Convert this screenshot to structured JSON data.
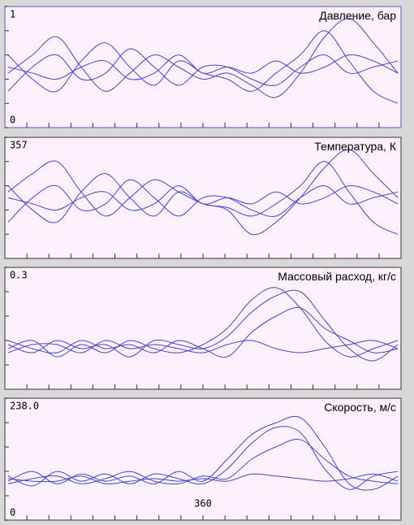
{
  "chart_data": [
    {
      "type": "line",
      "title": "Давление, бар",
      "ylim": [
        0,
        1
      ],
      "yticks": [
        1,
        0
      ],
      "xlim": [
        0,
        720
      ],
      "x": [
        0,
        45,
        90,
        135,
        180,
        225,
        270,
        315,
        360,
        405,
        450,
        495,
        540,
        585,
        630,
        675,
        720
      ],
      "series": [
        {
          "color": "#4646c0",
          "values": [
            0.45,
            0.6,
            0.75,
            0.5,
            0.3,
            0.45,
            0.6,
            0.5,
            0.4,
            0.45,
            0.35,
            0.25,
            0.45,
            0.75,
            0.9,
            0.7,
            0.45
          ]
        },
        {
          "color": "#4646c0",
          "values": [
            0.6,
            0.4,
            0.3,
            0.55,
            0.7,
            0.5,
            0.35,
            0.55,
            0.45,
            0.4,
            0.3,
            0.45,
            0.6,
            0.8,
            0.55,
            0.3,
            0.2
          ]
        },
        {
          "color": "#4646c0",
          "values": [
            0.3,
            0.5,
            0.6,
            0.4,
            0.45,
            0.65,
            0.5,
            0.35,
            0.5,
            0.5,
            0.4,
            0.35,
            0.5,
            0.6,
            0.45,
            0.5,
            0.55
          ]
        },
        {
          "color": "#4646c0",
          "values": [
            0.5,
            0.45,
            0.4,
            0.5,
            0.55,
            0.4,
            0.45,
            0.6,
            0.45,
            0.5,
            0.45,
            0.55,
            0.45,
            0.5,
            0.6,
            0.55,
            0.45
          ]
        }
      ]
    },
    {
      "type": "line",
      "title": "Температура, К",
      "ylim": [
        0,
        357
      ],
      "yticks": [
        357
      ],
      "xlim": [
        0,
        720
      ],
      "x": [
        0,
        45,
        90,
        135,
        180,
        225,
        270,
        315,
        360,
        405,
        450,
        495,
        540,
        585,
        630,
        675,
        720
      ],
      "series": [
        {
          "color": "#4646c0",
          "values": [
            196,
            250,
            286,
            196,
            125,
            179,
            232,
            196,
            161,
            143,
            71,
            107,
            179,
            268,
            321,
            250,
            179
          ]
        },
        {
          "color": "#4646c0",
          "values": [
            214,
            143,
            107,
            196,
            250,
            179,
            125,
            196,
            161,
            150,
            125,
            161,
            214,
            286,
            196,
            107,
            71
          ]
        },
        {
          "color": "#4646c0",
          "values": [
            107,
            179,
            214,
            143,
            161,
            232,
            179,
            125,
            179,
            179,
            143,
            125,
            179,
            214,
            161,
            179,
            196
          ]
        },
        {
          "color": "#4646c0",
          "values": [
            179,
            161,
            143,
            179,
            196,
            143,
            161,
            214,
            161,
            179,
            161,
            196,
            161,
            179,
            214,
            196,
            161
          ]
        }
      ]
    },
    {
      "type": "line",
      "title": "Массовый расход, кг/с",
      "ylim": [
        0,
        0.3
      ],
      "yticks": [
        0.3
      ],
      "xlim": [
        0,
        720
      ],
      "x": [
        0,
        45,
        90,
        135,
        180,
        225,
        270,
        315,
        360,
        405,
        450,
        495,
        540,
        585,
        630,
        675,
        720
      ],
      "series": [
        {
          "color": "#4646c0",
          "values": [
            0.1,
            0.12,
            0.08,
            0.11,
            0.09,
            0.12,
            0.1,
            0.09,
            0.11,
            0.15,
            0.22,
            0.25,
            0.2,
            0.12,
            0.08,
            0.1,
            0.12
          ]
        },
        {
          "color": "#4646c0",
          "values": [
            0.11,
            0.09,
            0.12,
            0.1,
            0.11,
            0.08,
            0.12,
            0.11,
            0.1,
            0.13,
            0.19,
            0.23,
            0.24,
            0.17,
            0.1,
            0.07,
            0.11
          ]
        },
        {
          "color": "#4646c0",
          "values": [
            0.12,
            0.1,
            0.09,
            0.12,
            0.1,
            0.11,
            0.09,
            0.12,
            0.1,
            0.08,
            0.14,
            0.18,
            0.2,
            0.15,
            0.12,
            0.09,
            0.1
          ]
        },
        {
          "color": "#4646c0",
          "values": [
            0.09,
            0.11,
            0.11,
            0.09,
            0.12,
            0.1,
            0.11,
            0.1,
            0.09,
            0.11,
            0.12,
            0.1,
            0.09,
            0.1,
            0.11,
            0.12,
            0.1
          ]
        }
      ]
    },
    {
      "type": "line",
      "title": "Скорость, м/с",
      "ylim": [
        0,
        238
      ],
      "yticks": [
        {
          "value": 238,
          "label": "238.0"
        },
        0
      ],
      "xlim": [
        0,
        720
      ],
      "xticks": [
        360
      ],
      "x": [
        0,
        45,
        90,
        135,
        180,
        225,
        270,
        315,
        360,
        405,
        450,
        495,
        540,
        585,
        630,
        675,
        720
      ],
      "series": [
        {
          "color": "#4646c0",
          "values": [
            76,
            95,
            71,
            90,
            76,
            86,
            71,
            95,
            76,
            119,
            167,
            190,
            200,
            143,
            71,
            60,
            86
          ]
        },
        {
          "color": "#4646c0",
          "values": [
            86,
            67,
            95,
            76,
            90,
            71,
            90,
            81,
            71,
            100,
            150,
            181,
            171,
            100,
            60,
            86,
            95
          ]
        },
        {
          "color": "#4646c0",
          "values": [
            71,
            81,
            86,
            71,
            81,
            95,
            76,
            71,
            86,
            81,
            119,
            143,
            157,
            119,
            86,
            76,
            71
          ]
        },
        {
          "color": "#4646c0",
          "values": [
            81,
            76,
            76,
            86,
            71,
            76,
            81,
            76,
            81,
            76,
            90,
            86,
            81,
            76,
            81,
            90,
            76
          ]
        }
      ]
    }
  ]
}
